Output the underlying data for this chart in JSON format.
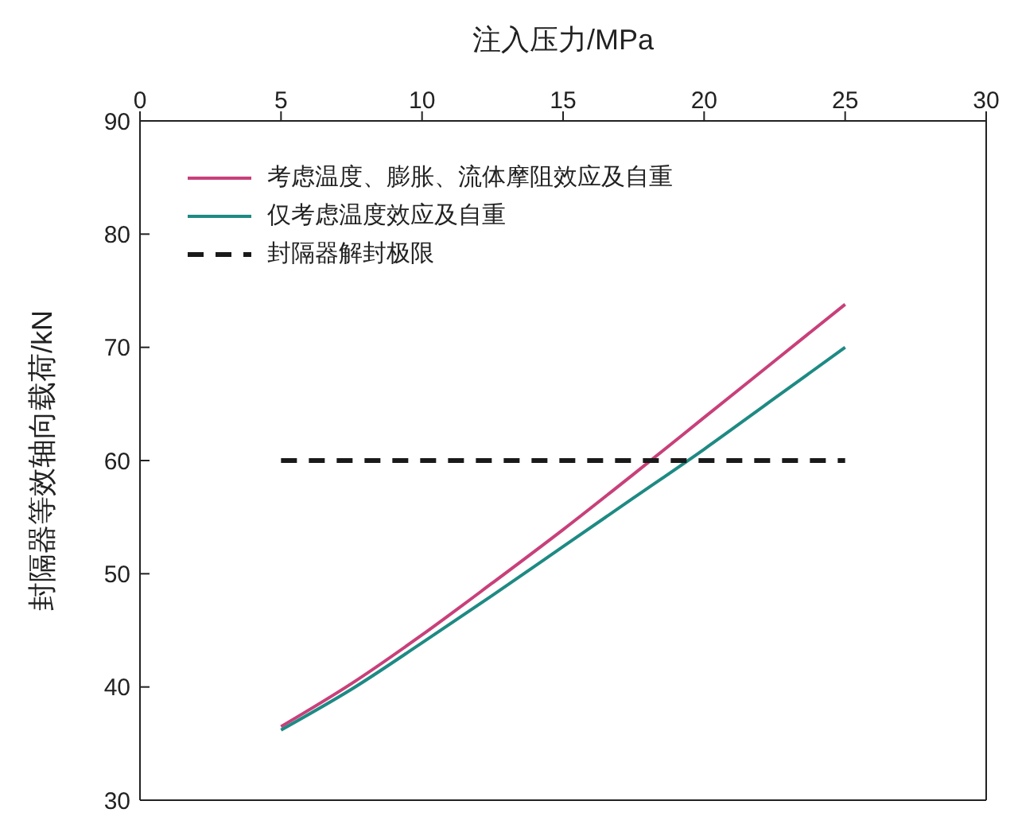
{
  "chart_data": {
    "type": "line",
    "xlabel": "注入压力/MPa",
    "ylabel": "封隔器等效轴向载荷/kN",
    "x": [
      5,
      7.5,
      10,
      12.5,
      15,
      17.5,
      20,
      22.5,
      25
    ],
    "series": [
      {
        "name": "考虑温度、膨胀、流体摩阻效应及自重",
        "color": "#c8407a",
        "values": [
          36.5,
          40.3,
          44.6,
          49.2,
          53.9,
          58.8,
          63.8,
          68.8,
          73.8
        ]
      },
      {
        "name": "仅考虑温度效应及自重",
        "color": "#1e8a84",
        "values": [
          36.2,
          39.8,
          43.9,
          48.1,
          52.4,
          56.7,
          61.0,
          65.5,
          70.0
        ]
      },
      {
        "name": "封隔器解封极限",
        "color": "#1a1a1a",
        "x": [
          5,
          25
        ],
        "values": [
          60,
          60
        ],
        "line_style": "dashed"
      }
    ],
    "xlim": [
      0,
      30
    ],
    "xticks": [
      0,
      5,
      10,
      15,
      20,
      25,
      30
    ],
    "ylim": [
      30,
      90
    ],
    "yticks": [
      30,
      40,
      50,
      60,
      70,
      80,
      90
    ],
    "legend": "top left",
    "marker": "none",
    "line_style": "solid"
  }
}
